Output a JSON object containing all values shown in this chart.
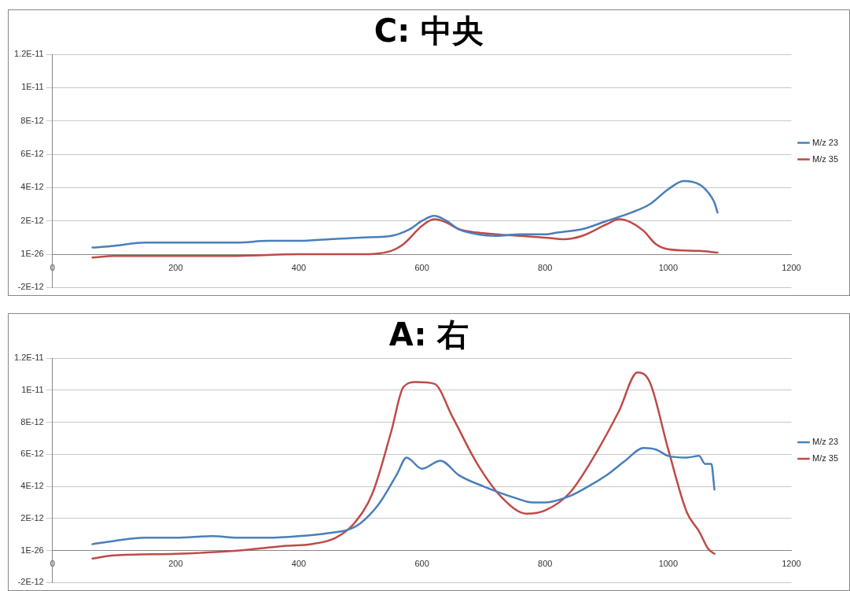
{
  "chart_data": [
    {
      "type": "line",
      "title": "C: 中央",
      "x": [
        65,
        100,
        150,
        200,
        250,
        300,
        350,
        400,
        450,
        500,
        550,
        580,
        600,
        620,
        640,
        660,
        690,
        720,
        760,
        800,
        820,
        860,
        900,
        940,
        970,
        1000,
        1025,
        1050,
        1065,
        1075,
        1080
      ],
      "series": [
        {
          "name": "M/z 23",
          "color": "#4a7ebb",
          "values": [
            4e-13,
            5e-13,
            7e-13,
            7e-13,
            7e-13,
            7e-13,
            8e-13,
            8e-13,
            9e-13,
            1e-12,
            1.1e-12,
            1.5e-12,
            2e-12,
            2.3e-12,
            2e-12,
            1.5e-12,
            1.2e-12,
            1.1e-12,
            1.2e-12,
            1.2e-12,
            1.3e-12,
            1.5e-12,
            2e-12,
            2.5e-12,
            3e-12,
            3.9e-12,
            4.4e-12,
            4.2e-12,
            3.7e-12,
            3.1e-12,
            2.5e-12
          ]
        },
        {
          "name": "M/z 35",
          "color": "#be4b48",
          "x": [
            65,
            100,
            200,
            300,
            400,
            500,
            550,
            570,
            600,
            620,
            640,
            660,
            690,
            720,
            760,
            800,
            830,
            860,
            900,
            920,
            940,
            960,
            980,
            1000,
            1050,
            1080
          ],
          "values": [
            -2e-13,
            -1e-13,
            -1e-13,
            -1e-13,
            0,
            0,
            2e-13,
            6e-13,
            1.7e-12,
            2.1e-12,
            1.9e-12,
            1.5e-12,
            1.3e-12,
            1.2e-12,
            1.1e-12,
            1e-12,
            9e-13,
            1.1e-12,
            1.8e-12,
            2.1e-12,
            1.9e-12,
            1.4e-12,
            6e-13,
            3e-13,
            2e-13,
            1e-13
          ]
        }
      ],
      "xlim": [
        0,
        1200
      ],
      "xticks": [
        0,
        200,
        400,
        600,
        800,
        1000,
        1200
      ],
      "ylim": [
        -2e-12,
        1.2e-11
      ],
      "yticks": [
        {
          "value": -2e-12,
          "label": "-2E-12"
        },
        {
          "value": 1e-26,
          "label": "1E-26"
        },
        {
          "value": 2e-12,
          "label": "2E-12"
        },
        {
          "value": 4e-12,
          "label": "4E-12"
        },
        {
          "value": 6e-12,
          "label": "6E-12"
        },
        {
          "value": 8e-12,
          "label": "8E-12"
        },
        {
          "value": 1e-11,
          "label": "1E-11"
        },
        {
          "value": 1.2e-11,
          "label": "1.2E-11"
        }
      ],
      "grid": "y",
      "legend": "right",
      "marker": "none",
      "line_style": "solid"
    },
    {
      "type": "line",
      "title": "A: 右",
      "x": [
        65,
        100,
        150,
        200,
        260,
        300,
        350,
        400,
        450,
        480,
        500,
        530,
        560,
        575,
        600,
        630,
        660,
        700,
        750,
        780,
        800,
        840,
        870,
        900,
        930,
        960,
        980,
        1000,
        1030,
        1050,
        1060,
        1070,
        1075
      ],
      "series": [
        {
          "name": "M/z 23",
          "color": "#4a7ebb",
          "values": [
            4e-13,
            6e-13,
            8e-13,
            8e-13,
            9e-13,
            8e-13,
            8e-13,
            9e-13,
            1.1e-12,
            1.3e-12,
            1.7e-12,
            2.9e-12,
            4.8e-12,
            5.8e-12,
            5.1e-12,
            5.6e-12,
            4.7e-12,
            4e-12,
            3.3e-12,
            3e-12,
            3e-12,
            3.4e-12,
            4e-12,
            4.7e-12,
            5.6e-12,
            6.4e-12,
            6.3e-12,
            5.9e-12,
            5.8e-12,
            5.9e-12,
            5.4e-12,
            5.4e-12,
            3.8e-12
          ]
        },
        {
          "name": "M/z 35",
          "color": "#be4b48",
          "x": [
            65,
            100,
            200,
            300,
            380,
            420,
            460,
            490,
            520,
            550,
            570,
            590,
            620,
            650,
            690,
            730,
            770,
            800,
            840,
            880,
            920,
            950,
            970,
            1000,
            1030,
            1050,
            1065,
            1075
          ],
          "values": [
            -5e-13,
            -3e-13,
            -2e-13,
            0,
            3e-13,
            4e-13,
            8e-13,
            1.7e-12,
            3.6e-12,
            7.4e-12,
            1.02e-11,
            1.05e-11,
            1.04e-11,
            8.3e-12,
            5.4e-12,
            3.3e-12,
            2.3e-12,
            2.5e-12,
            3.6e-12,
            5.9e-12,
            8.7e-12,
            1.11e-11,
            1.05e-11,
            6.3e-12,
            2.4e-12,
            1.2e-12,
            1e-13,
            -2e-13
          ]
        }
      ],
      "xlim": [
        0,
        1200
      ],
      "xticks": [
        0,
        200,
        400,
        600,
        800,
        1000,
        1200
      ],
      "ylim": [
        -2e-12,
        1.2e-11
      ],
      "yticks": [
        {
          "value": -2e-12,
          "label": "-2E-12"
        },
        {
          "value": 1e-26,
          "label": "1E-26"
        },
        {
          "value": 2e-12,
          "label": "2E-12"
        },
        {
          "value": 4e-12,
          "label": "4E-12"
        },
        {
          "value": 6e-12,
          "label": "6E-12"
        },
        {
          "value": 8e-12,
          "label": "8E-12"
        },
        {
          "value": 1e-11,
          "label": "1E-11"
        },
        {
          "value": 1.2e-11,
          "label": "1.2E-11"
        }
      ],
      "grid": "y",
      "legend": "right",
      "marker": "none",
      "line_style": "solid"
    }
  ]
}
